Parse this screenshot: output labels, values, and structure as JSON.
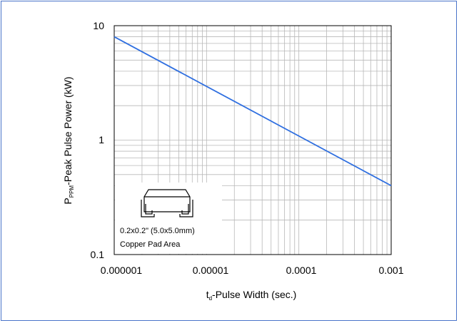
{
  "chart_data": {
    "type": "line",
    "xscale": "log",
    "yscale": "log",
    "xlim": [
      1e-06,
      0.001
    ],
    "ylim": [
      0.1,
      10
    ],
    "x_ticks": [
      "0.000001",
      "0.00001",
      "0.0001",
      "0.001"
    ],
    "y_ticks": [
      "10",
      "1",
      "0.1"
    ],
    "xlabel_main": "t",
    "xlabel_sub": "d",
    "xlabel_rest": "-Pulse Width (sec.)",
    "ylabel_main": "P",
    "ylabel_sub": "PPM",
    "ylabel_rest": "-Peak Pulse Power (kW)",
    "grid": true,
    "series": [
      {
        "x": [
          1e-06,
          0.001
        ],
        "y": [
          8,
          0.4
        ],
        "color": "#2f6fe0"
      }
    ],
    "inset": {
      "line1": "0.2x0.2\" (5.0x5.0mm)",
      "line2": "Copper Pad Area",
      "icon": "smd-package-footprint-icon"
    }
  }
}
